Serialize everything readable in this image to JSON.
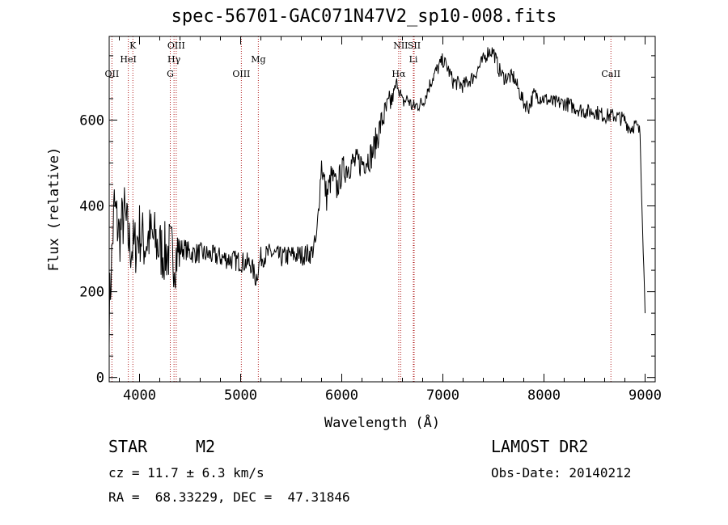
{
  "title": "spec-56701-GAC071N47V2_sp10-008.fits",
  "chart_data": {
    "type": "line",
    "xlabel": "Wavelength (Å)",
    "ylabel": "Flux (relative)",
    "xlim": [
      3700,
      9100
    ],
    "ylim": [
      -10,
      795
    ],
    "xticks": [
      4000,
      5000,
      6000,
      7000,
      8000,
      9000
    ],
    "yticks": [
      0,
      200,
      400,
      600
    ],
    "grid": false,
    "series": [
      {
        "x": [
          3700,
          3750,
          3800,
          3850,
          3900,
          3950,
          4000,
          4050,
          4100,
          4150,
          4200,
          4250,
          4300,
          4350,
          4400,
          4450,
          4500,
          4600,
          4700,
          4800,
          4900,
          5000,
          5100,
          5150,
          5200,
          5300,
          5400,
          5500,
          5600,
          5700,
          5750,
          5800,
          5850,
          5900,
          5950,
          6000,
          6100,
          6200,
          6300,
          6400,
          6500,
          6550,
          6600,
          6650,
          6700,
          6800,
          6900,
          7000,
          7050,
          7100,
          7200,
          7300,
          7400,
          7450,
          7500,
          7550,
          7600,
          7700,
          7800,
          7850,
          7900,
          8000,
          8100,
          8200,
          8300,
          8400,
          8500,
          8600,
          8700,
          8800,
          8850,
          8900,
          8950,
          9000
        ],
        "y": [
          150,
          400,
          330,
          380,
          310,
          300,
          340,
          310,
          330,
          320,
          300,
          290,
          295,
          280,
          300,
          300,
          290,
          290,
          285,
          280,
          275,
          270,
          265,
          230,
          280,
          290,
          280,
          285,
          285,
          290,
          320,
          500,
          420,
          470,
          440,
          480,
          500,
          500,
          520,
          600,
          650,
          690,
          640,
          650,
          630,
          640,
          700,
          740,
          720,
          690,
          680,
          700,
          740,
          760,
          760,
          720,
          700,
          700,
          640,
          630,
          660,
          650,
          640,
          640,
          630,
          620,
          620,
          610,
          610,
          600,
          580,
          590,
          570,
          150
        ]
      }
    ]
  },
  "lines": [
    {
      "label": "OII",
      "wl": 3727,
      "row": 3
    },
    {
      "label": "K",
      "wl": 3934,
      "row": 1
    },
    {
      "label": "HeI",
      "wl": 3889,
      "row": 2
    },
    {
      "label": "OIII",
      "wl": 4363,
      "row": 1
    },
    {
      "label": "Hγ",
      "wl": 4341,
      "row": 2
    },
    {
      "label": "G",
      "wl": 4304,
      "row": 3
    },
    {
      "label": "OIII",
      "wl": 5007,
      "row": 3
    },
    {
      "label": "Mg",
      "wl": 5175,
      "row": 2
    },
    {
      "label": "NII",
      "wl": 6583,
      "row": 1
    },
    {
      "label": "Hα",
      "wl": 6563,
      "row": 3
    },
    {
      "label": "Li",
      "wl": 6708,
      "row": 2
    },
    {
      "label": "SII",
      "wl": 6716,
      "row": 1
    },
    {
      "label": "CaII",
      "wl": 8662,
      "row": 3
    }
  ],
  "info": {
    "class": "STAR",
    "subclass": "M2",
    "survey": "LAMOST DR2",
    "cz": "cz = 11.7 ± 6.3 km/s",
    "obsdate": "Obs-Date: 20140212",
    "radec": "RA =  68.33229, DEC =  47.31846"
  },
  "colors": {
    "line_marker": "#b22222",
    "spectrum": "#000000"
  }
}
